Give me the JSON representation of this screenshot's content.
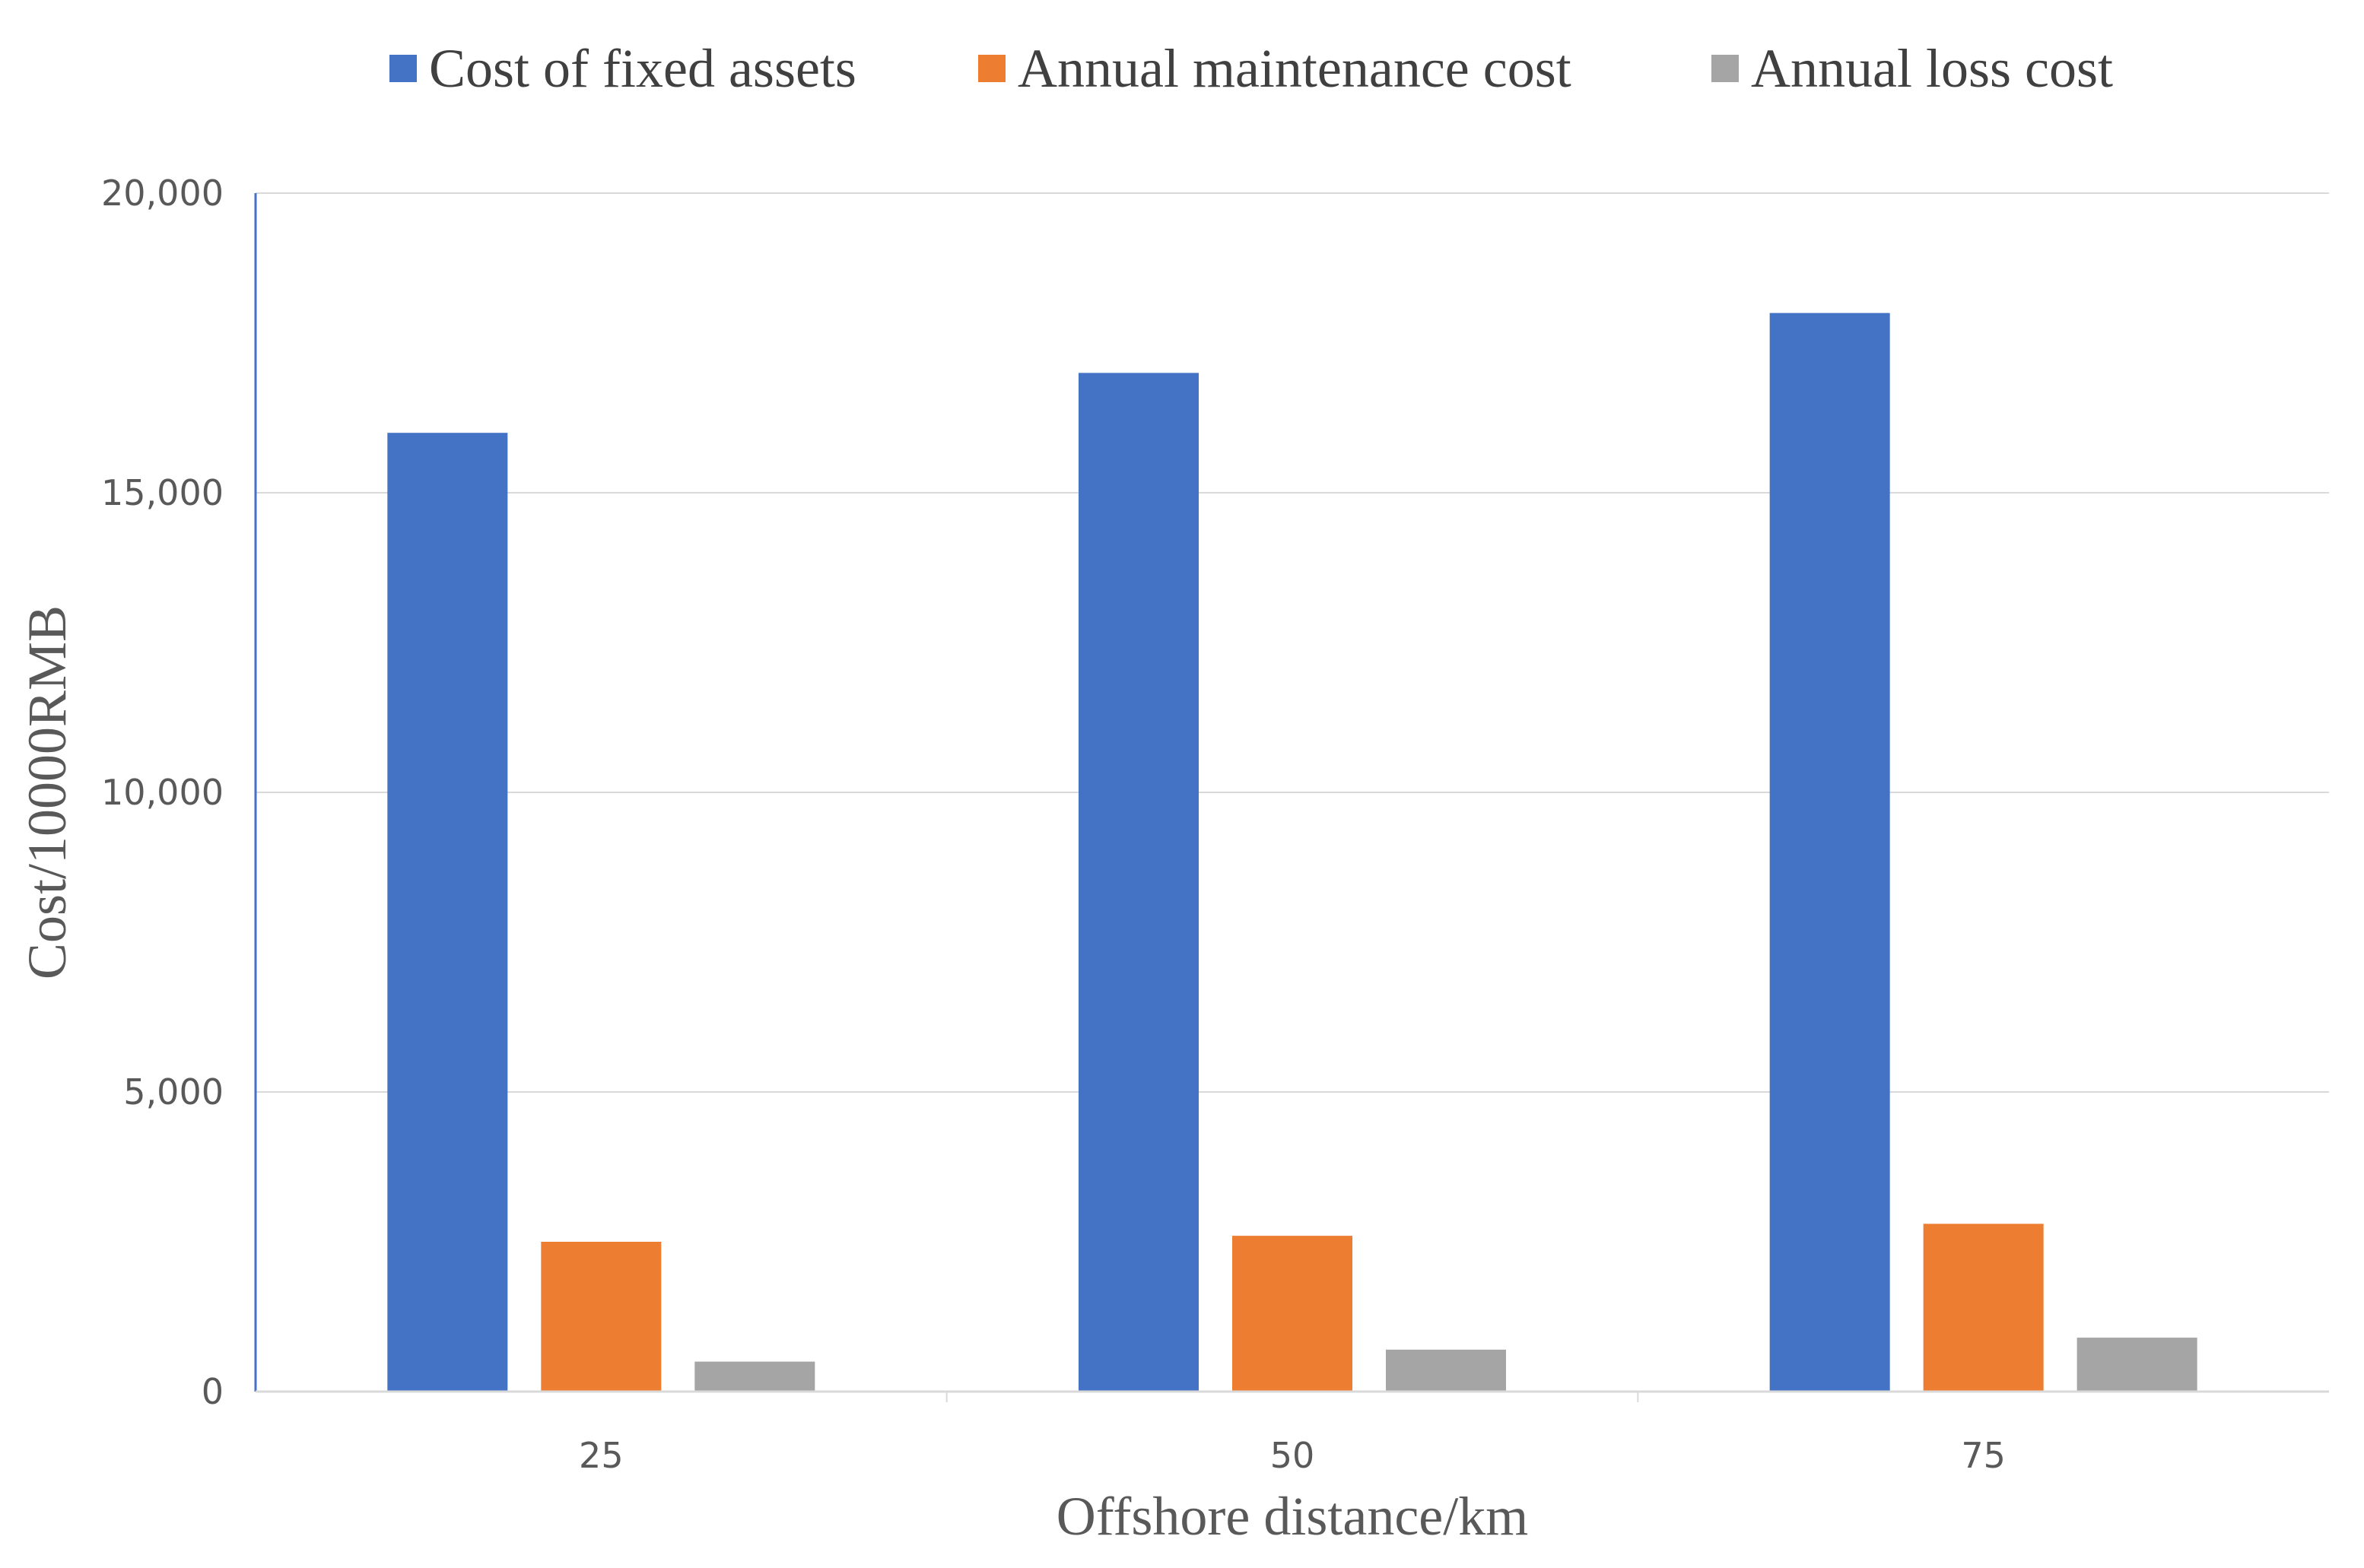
{
  "chart_data": {
    "type": "bar",
    "title": "",
    "xlabel": "Offshore distance/km",
    "ylabel": "Cost/10000RMB",
    "categories": [
      "25",
      "50",
      "75"
    ],
    "ylim": [
      0,
      20000
    ],
    "yticks": [
      0,
      5000,
      10000,
      15000,
      20000
    ],
    "ytick_labels": [
      "0",
      "5,000",
      "10,000",
      "15,000",
      "20,000"
    ],
    "grid": true,
    "legend_position": "top-center",
    "series": [
      {
        "name": "Cost of fixed assets",
        "color": "#4472C4",
        "values": [
          16000,
          17000,
          18000
        ]
      },
      {
        "name": "Annual maintenance cost",
        "color": "#ED7D31",
        "values": [
          2500,
          2600,
          2800
        ]
      },
      {
        "name": "Annual loss cost",
        "color": "#A5A5A5",
        "values": [
          500,
          700,
          900
        ]
      }
    ]
  }
}
